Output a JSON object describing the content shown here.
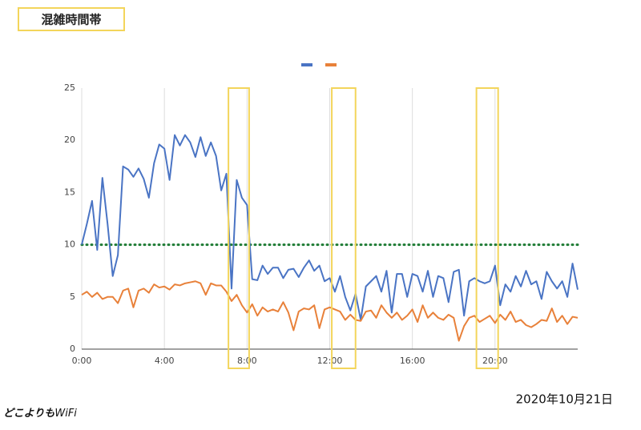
{
  "chart_data": {
    "type": "line",
    "title": "混雑時間帯",
    "x": [
      0,
      0.25,
      0.5,
      0.75,
      1,
      1.25,
      1.5,
      1.75,
      2,
      2.25,
      2.5,
      2.75,
      3,
      3.25,
      3.5,
      3.75,
      4,
      4.25,
      4.5,
      4.75,
      5,
      5.25,
      5.5,
      5.75,
      6,
      6.25,
      6.5,
      6.75,
      7,
      7.25,
      7.5,
      7.75,
      8,
      8.25,
      8.5,
      8.75,
      9,
      9.25,
      9.5,
      9.75,
      10,
      10.25,
      10.5,
      10.75,
      11,
      11.25,
      11.5,
      11.75,
      12,
      12.25,
      12.5,
      12.75,
      13,
      13.25,
      13.5,
      13.75,
      14,
      14.25,
      14.5,
      14.75,
      15,
      15.25,
      15.5,
      15.75,
      16,
      16.25,
      16.5,
      16.75,
      17,
      17.25,
      17.5,
      17.75,
      18,
      18.25,
      18.5,
      18.75,
      19,
      19.25,
      19.5,
      19.75,
      20,
      20.25,
      20.5,
      20.75,
      21,
      21.25,
      21.5,
      21.75,
      22,
      22.25,
      22.5,
      22.75,
      23,
      23.25,
      23.5,
      23.75,
      24
    ],
    "series": [
      {
        "color": "#4a74c4",
        "values": [
          10,
          12,
          14.2,
          9.5,
          16.4,
          12,
          7,
          9,
          17.5,
          17.2,
          16.5,
          17.3,
          16.3,
          14.5,
          17.8,
          19.6,
          19.2,
          16.2,
          20.5,
          19.5,
          20.5,
          19.8,
          18.4,
          20.3,
          18.5,
          19.8,
          18.5,
          15.2,
          16.8,
          5.8,
          16.2,
          14.5,
          13.8,
          6.7,
          6.6,
          8,
          7.2,
          7.8,
          7.8,
          6.8,
          7.6,
          7.7,
          6.9,
          7.8,
          8.5,
          7.5,
          8,
          6.5,
          6.8,
          5.5,
          7,
          5,
          3.7,
          5.3,
          2.8,
          6,
          6.5,
          7,
          5.5,
          7.5,
          3.5,
          7.2,
          7.2,
          5,
          7.2,
          7,
          5.5,
          7.5,
          5,
          7,
          6.8,
          4.5,
          7.4,
          7.6,
          3.2,
          6.5,
          6.8,
          6.5,
          6.3,
          6.5,
          8,
          4.2,
          6.2,
          5.5,
          7,
          6,
          7.5,
          6.2,
          6.5,
          4.8,
          7.4,
          6.5,
          5.8,
          6.5,
          5,
          8.2,
          5.7
        ]
      },
      {
        "color": "#e8813a",
        "values": [
          5.2,
          5.5,
          5,
          5.4,
          4.8,
          5,
          5,
          4.4,
          5.6,
          5.8,
          4,
          5.6,
          5.8,
          5.4,
          6.2,
          5.9,
          6,
          5.7,
          6.2,
          6.1,
          6.3,
          6.4,
          6.5,
          6.3,
          5.2,
          6.3,
          6.1,
          6.1,
          5.5,
          4.6,
          5.2,
          4.2,
          3.5,
          4.3,
          3.2,
          4,
          3.6,
          3.8,
          3.6,
          4.5,
          3.5,
          1.8,
          3.6,
          3.9,
          3.8,
          4.2,
          2,
          3.8,
          4,
          3.8,
          3.6,
          2.8,
          3.3,
          2.8,
          2.7,
          3.6,
          3.7,
          3,
          4.2,
          3.5,
          3,
          3.5,
          2.8,
          3.2,
          3.8,
          2.6,
          4.2,
          3,
          3.5,
          3,
          2.8,
          3.3,
          3,
          0.8,
          2.2,
          3,
          3.2,
          2.6,
          2.9,
          3.2,
          2.5,
          3.3,
          2.8,
          3.6,
          2.6,
          2.8,
          2.3,
          2.1,
          2.4,
          2.8,
          2.7,
          3.9,
          2.6,
          3.2,
          2.4,
          3.1,
          3
        ]
      }
    ],
    "xlim": [
      0,
      24
    ],
    "xticks": [
      {
        "value": 0,
        "label": "0:00"
      },
      {
        "value": 4,
        "label": "4:00"
      },
      {
        "value": 8,
        "label": "8:00"
      },
      {
        "value": 12,
        "label": "12:00"
      },
      {
        "value": 16,
        "label": "16:00"
      },
      {
        "value": 20,
        "label": "20:00"
      }
    ],
    "ylim": [
      0,
      25
    ],
    "yticks": [
      0,
      5,
      10,
      15,
      20,
      25
    ],
    "grid": "x",
    "threshold": {
      "value": 10,
      "color": "#1e7b34"
    },
    "highlight_ranges": [
      [
        7.1,
        8.1
      ],
      [
        12.1,
        13.25
      ],
      [
        19.1,
        20.15
      ]
    ],
    "highlight_color": "#f3d55b",
    "date": "2020年10月21日",
    "logo": [
      "どこよりも",
      "WiFi"
    ]
  }
}
